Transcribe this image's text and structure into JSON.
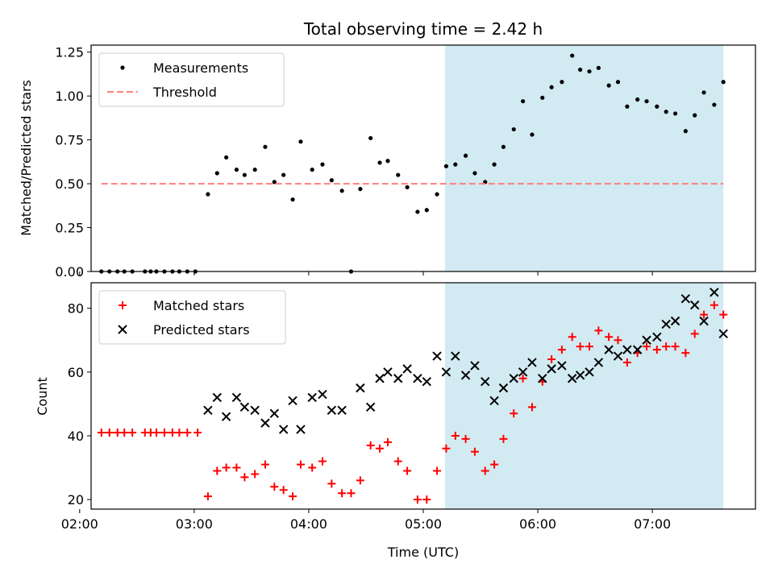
{
  "chart_data": {
    "title": "Total observing time = 2.42 h",
    "xlabel": "Time (UTC)",
    "x_unit": "hours (UTC)",
    "xlim": [
      2.1,
      7.9
    ],
    "x_ticks": [
      {
        "value": 2,
        "label": "02:00"
      },
      {
        "value": 3,
        "label": "03:00"
      },
      {
        "value": 4,
        "label": "04:00"
      },
      {
        "value": 5,
        "label": "05:00"
      },
      {
        "value": 6,
        "label": "06:00"
      },
      {
        "value": 7,
        "label": "07:00"
      }
    ],
    "shaded_region": {
      "x0": 5.19,
      "x1": 7.62,
      "color": "#add8e6"
    },
    "panels": [
      {
        "type": "scatter",
        "ylabel": "Matched/Predicted stars",
        "ylim": [
          0,
          1.29
        ],
        "y_ticks": [
          "0.00",
          "0.25",
          "0.50",
          "0.75",
          "1.00",
          "1.25"
        ],
        "legend_position": "upper-left",
        "series": [
          {
            "name": "Measurements",
            "marker": "dot",
            "color": "#000000",
            "x": [
              2.19,
              2.26,
              2.33,
              2.39,
              2.46,
              2.57,
              2.62,
              2.67,
              2.74,
              2.81,
              2.87,
              2.94,
              3.01,
              3.12,
              3.2,
              3.28,
              3.37,
              3.44,
              3.53,
              3.62,
              3.7,
              3.78,
              3.86,
              3.93,
              4.03,
              4.12,
              4.2,
              4.29,
              4.37,
              4.45,
              4.54,
              4.62,
              4.69,
              4.78,
              4.86,
              4.95,
              5.03,
              5.12,
              5.2,
              5.28,
              5.37,
              5.45,
              5.54,
              5.62,
              5.7,
              5.79,
              5.87,
              5.95,
              6.04,
              6.12,
              6.21,
              6.3,
              6.37,
              6.45,
              6.53,
              6.62,
              6.7,
              6.78,
              6.87,
              6.95,
              7.04,
              7.12,
              7.2,
              7.29,
              7.37,
              7.45,
              7.54,
              7.62
            ],
            "y": [
              0,
              0,
              0,
              0,
              0,
              0,
              0,
              0,
              0,
              0,
              0,
              0,
              0,
              0.44,
              0.56,
              0.65,
              0.58,
              0.55,
              0.58,
              0.71,
              0.51,
              0.55,
              0.41,
              0.74,
              0.58,
              0.61,
              0.52,
              0.46,
              0,
              0.47,
              0.76,
              0.62,
              0.63,
              0.55,
              0.48,
              0.34,
              0.35,
              0.44,
              0.6,
              0.61,
              0.66,
              0.56,
              0.51,
              0.61,
              0.71,
              0.81,
              0.97,
              0.78,
              0.99,
              1.05,
              1.08,
              1.23,
              1.15,
              1.14,
              1.16,
              1.06,
              1.08,
              0.94,
              0.98,
              0.97,
              0.94,
              0.91,
              0.9,
              0.8,
              0.89,
              1.02,
              0.95,
              1.08
            ]
          },
          {
            "name": "Threshold",
            "marker": "dashed-line",
            "color": "#ff7f7f",
            "x": [
              2.19,
              7.62
            ],
            "y": [
              0.5,
              0.5
            ]
          }
        ]
      },
      {
        "type": "scatter",
        "ylabel": "Count",
        "ylim": [
          17,
          88
        ],
        "y_ticks": [
          "20",
          "40",
          "60",
          "80"
        ],
        "legend_position": "upper-left",
        "series": [
          {
            "name": "Matched stars",
            "marker": "plus",
            "color": "#ff0000",
            "x": [
              2.19,
              2.26,
              2.33,
              2.39,
              2.46,
              2.57,
              2.62,
              2.67,
              2.74,
              2.81,
              2.87,
              2.94,
              3.03,
              3.12,
              3.2,
              3.28,
              3.37,
              3.44,
              3.53,
              3.62,
              3.7,
              3.78,
              3.86,
              3.93,
              4.03,
              4.12,
              4.2,
              4.29,
              4.37,
              4.45,
              4.54,
              4.62,
              4.69,
              4.78,
              4.86,
              4.95,
              5.03,
              5.12,
              5.2,
              5.28,
              5.37,
              5.45,
              5.54,
              5.62,
              5.7,
              5.79,
              5.87,
              5.95,
              6.04,
              6.12,
              6.21,
              6.3,
              6.37,
              6.45,
              6.53,
              6.62,
              6.7,
              6.78,
              6.87,
              6.95,
              7.04,
              7.12,
              7.2,
              7.29,
              7.37,
              7.45,
              7.54,
              7.62
            ],
            "y": [
              41,
              41,
              41,
              41,
              41,
              41,
              41,
              41,
              41,
              41,
              41,
              41,
              41,
              21,
              29,
              30,
              30,
              27,
              28,
              31,
              24,
              23,
              21,
              31,
              30,
              32,
              25,
              22,
              22,
              26,
              37,
              36,
              38,
              32,
              29,
              20,
              20,
              29,
              36,
              40,
              39,
              35,
              29,
              31,
              39,
              47,
              58,
              49,
              57,
              64,
              67,
              71,
              68,
              68,
              73,
              71,
              70,
              63,
              66,
              68,
              67,
              68,
              68,
              66,
              72,
              78,
              81,
              78
            ]
          },
          {
            "name": "Predicted stars",
            "marker": "x",
            "color": "#000000",
            "x": [
              3.12,
              3.2,
              3.28,
              3.37,
              3.44,
              3.53,
              3.62,
              3.7,
              3.78,
              3.86,
              3.93,
              4.03,
              4.12,
              4.2,
              4.29,
              4.45,
              4.54,
              4.62,
              4.69,
              4.78,
              4.86,
              4.95,
              5.03,
              5.12,
              5.2,
              5.28,
              5.37,
              5.45,
              5.54,
              5.62,
              5.7,
              5.79,
              5.87,
              5.95,
              6.04,
              6.12,
              6.21,
              6.3,
              6.37,
              6.45,
              6.53,
              6.62,
              6.7,
              6.78,
              6.87,
              6.95,
              7.04,
              7.12,
              7.2,
              7.29,
              7.37,
              7.45,
              7.54,
              7.62
            ],
            "y": [
              48,
              52,
              46,
              52,
              49,
              48,
              44,
              47,
              42,
              51,
              42,
              52,
              53,
              48,
              48,
              55,
              49,
              58,
              60,
              58,
              61,
              58,
              57,
              65,
              60,
              65,
              59,
              62,
              57,
              51,
              55,
              58,
              60,
              63,
              58,
              61,
              62,
              58,
              59,
              60,
              63,
              67,
              65,
              67,
              67,
              70,
              71,
              75,
              76,
              83,
              81,
              76,
              85,
              72
            ]
          }
        ]
      }
    ]
  }
}
